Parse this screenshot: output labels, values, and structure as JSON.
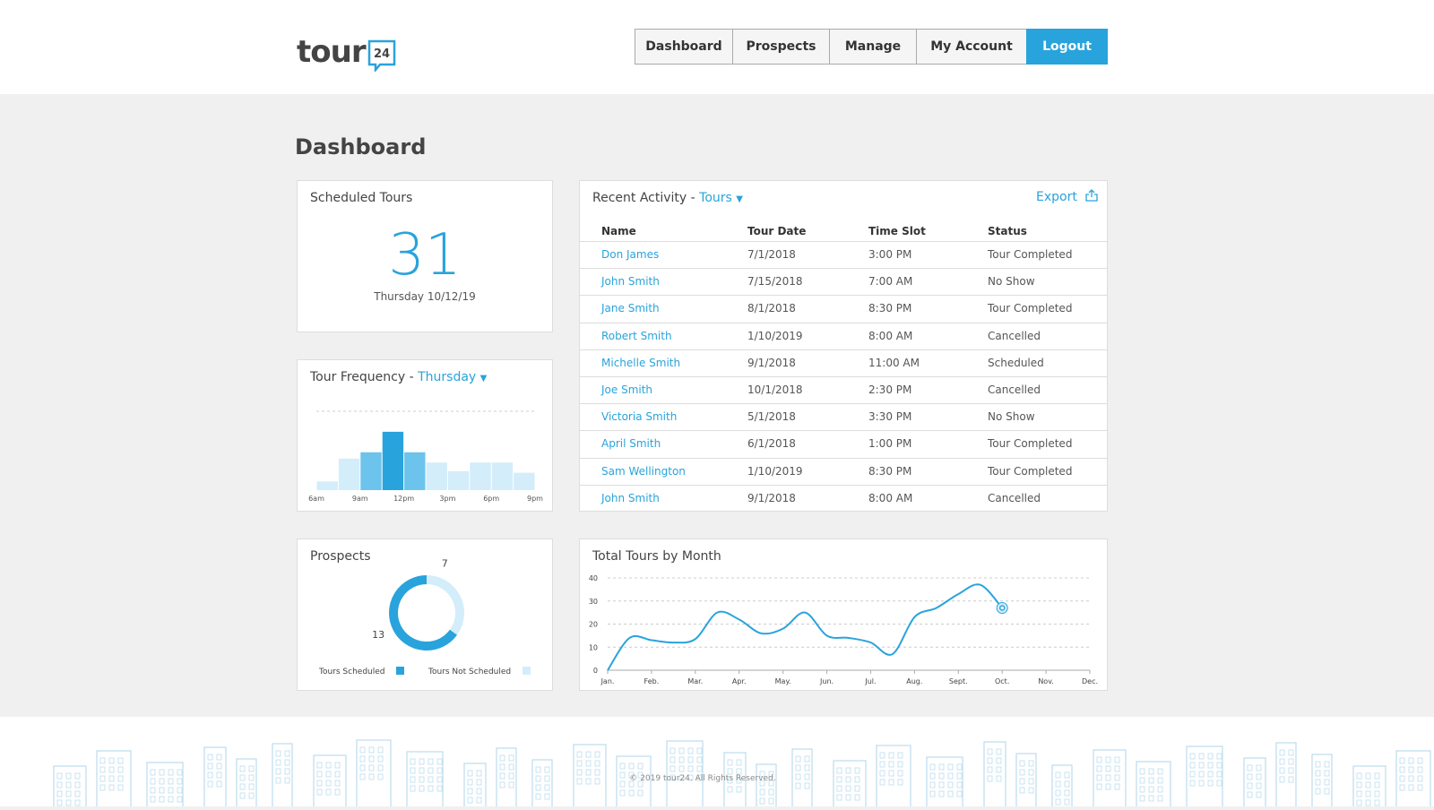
{
  "header": {
    "logo": "tour",
    "logo_badge": "24",
    "nav": [
      "Dashboard",
      "Prospects",
      "Manage",
      "My Account",
      "Logout"
    ],
    "active_nav": 4
  },
  "page_title": "Dashboard",
  "scheduled_tours": {
    "title": "Scheduled Tours",
    "count": 31,
    "date": "Thursday 10/12/19"
  },
  "tour_frequency": {
    "title": "Tour Frequency - ",
    "filter": "Thursday",
    "chart_data": {
      "type": "histogram",
      "bins": [
        6,
        7.5,
        9,
        10.5,
        12,
        13.5,
        15,
        16.5,
        18,
        19.5,
        21
      ],
      "values": [
        11,
        40,
        48,
        74,
        48,
        35,
        24,
        35,
        35,
        22
      ],
      "colors": [
        "#d3edfa",
        "#d3edfa",
        "#6cc3ec",
        "#29a3dc",
        "#6cc3ec",
        "#d3edfa",
        "#d3edfa",
        "#d3edfa",
        "#d3edfa",
        "#d3edfa"
      ],
      "xlim": [
        6,
        21
      ],
      "ylim": [
        0,
        100
      ],
      "xticks": [
        {
          "value": 6,
          "label": "6am"
        },
        {
          "value": 9,
          "label": "9am"
        },
        {
          "value": 12,
          "label": "12pm"
        },
        {
          "value": 15,
          "label": "3pm"
        },
        {
          "value": 18,
          "label": "6pm"
        },
        {
          "value": 21,
          "label": "9pm"
        }
      ]
    }
  },
  "prospects": {
    "title": "Prospects",
    "chart_data": {
      "type": "donut",
      "categories": [
        "Tours Scheduled",
        "Tours Not Scheduled"
      ],
      "values": [
        13,
        7
      ],
      "colors": [
        "#29a3dc",
        "#d3edfa"
      ]
    }
  },
  "recent_activity": {
    "title": "Recent Activity - ",
    "filter": "Tours",
    "export": "Export",
    "table": {
      "headers": [
        "Name",
        "Tour Date",
        "Time Slot",
        "Status"
      ],
      "rows": [
        [
          "Don James",
          "7/1/2018",
          "3:00 PM",
          "Tour Completed"
        ],
        [
          "John Smith",
          "7/15/2018",
          "7:00 AM",
          "No Show"
        ],
        [
          "Jane Smith",
          "8/1/2018",
          "8:30 PM",
          "Tour Completed"
        ],
        [
          "Robert Smith",
          "1/10/2019",
          "8:00 AM",
          "Cancelled"
        ],
        [
          "Michelle Smith",
          "9/1/2018",
          "11:00 AM",
          "Scheduled"
        ],
        [
          "Joe Smith",
          "10/1/2018",
          "2:30 PM",
          "Cancelled"
        ],
        [
          "Victoria Smith",
          "5/1/2018",
          "3:30 PM",
          "No Show"
        ],
        [
          "April Smith",
          "6/1/2018",
          "1:00 PM",
          "Tour Completed"
        ],
        [
          "Sam Wellington",
          "1/10/2019",
          "8:30 PM",
          "Tour Completed"
        ],
        [
          "John Smith",
          "9/1/2018",
          "8:00 AM",
          "Cancelled"
        ]
      ]
    }
  },
  "total_tours": {
    "title": "Total Tours by Month",
    "chart_data": {
      "type": "line",
      "color": "#29a3dc",
      "x": [
        0,
        0.5,
        1,
        1.5,
        2,
        2.5,
        3,
        3.5,
        4,
        4.5,
        5,
        5.5,
        6,
        6.5,
        7,
        7.5,
        8,
        8.5,
        9
      ],
      "values": [
        0,
        14,
        13,
        12,
        13.5,
        25,
        22,
        16,
        18,
        25,
        15,
        14,
        12,
        7,
        23,
        27,
        33,
        37,
        27
      ],
      "xlim": [
        0,
        11
      ],
      "ylim": [
        0,
        40
      ],
      "yticks": [
        0,
        10,
        20,
        30,
        40
      ],
      "grid": true,
      "xticks": [
        {
          "value": 0,
          "label": "Jan."
        },
        {
          "value": 1,
          "label": "Feb."
        },
        {
          "value": 2,
          "label": "Mar."
        },
        {
          "value": 3,
          "label": "Apr."
        },
        {
          "value": 4,
          "label": "May."
        },
        {
          "value": 5,
          "label": "Jun."
        },
        {
          "value": 6,
          "label": "Jul."
        },
        {
          "value": 7,
          "label": "Aug."
        },
        {
          "value": 8,
          "label": "Sept."
        },
        {
          "value": 9,
          "label": "Oct."
        },
        {
          "value": 10,
          "label": "Nov."
        },
        {
          "value": 11,
          "label": "Dec."
        }
      ]
    }
  },
  "footer": {
    "copyright": "© 2019 tour24. All Rights Reserved."
  }
}
